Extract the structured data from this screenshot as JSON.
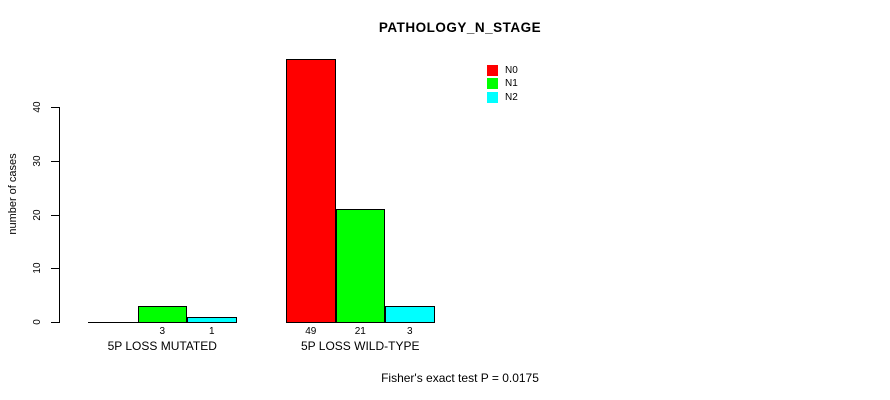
{
  "chart_data": {
    "type": "bar",
    "title": "PATHOLOGY_N_STAGE",
    "ylabel": "number of cases",
    "xlabel": "",
    "groups": [
      "5P LOSS MUTATED",
      "5P LOSS WILD-TYPE"
    ],
    "series": [
      {
        "name": "N0",
        "color": "#ff0000",
        "values": [
          0,
          49
        ]
      },
      {
        "name": "N1",
        "color": "#00ff00",
        "values": [
          3,
          21
        ]
      },
      {
        "name": "N2",
        "color": "#00ffff",
        "values": [
          1,
          3
        ]
      }
    ],
    "bar_value_labels": [
      [
        "",
        "3",
        "1"
      ],
      [
        "49",
        "21",
        "3"
      ]
    ],
    "y_ticks": [
      "0",
      "10",
      "20",
      "30",
      "40"
    ],
    "ylim": [
      0,
      40
    ],
    "grid": false,
    "legend": {
      "position": "top-right-inside",
      "entries": [
        "N0",
        "N1",
        "N2"
      ]
    }
  },
  "annotation": {
    "footer": "Fisher's exact test P = 0.0175"
  }
}
